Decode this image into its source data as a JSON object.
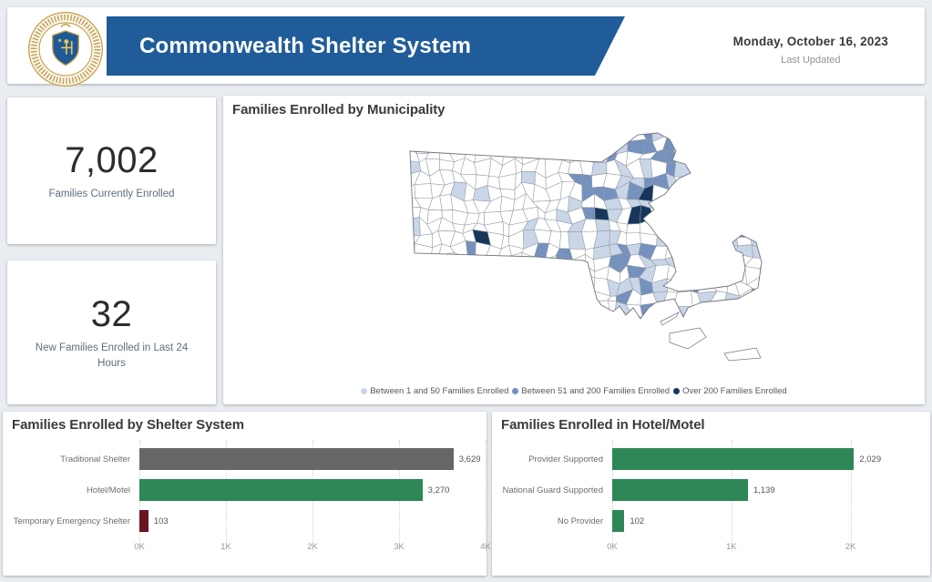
{
  "header": {
    "title": "Commonwealth Shelter System",
    "date": "Monday, October 16, 2023",
    "last_updated_label": "Last Updated",
    "banner_color": "#1f5c99",
    "seal_icon": "massachusetts-state-seal"
  },
  "kpis": [
    {
      "value": "7,002",
      "label": "Families Currently Enrolled"
    },
    {
      "value": "32",
      "label": "New Families Enrolled in Last 24 Hours"
    }
  ],
  "map": {
    "title": "Families Enrolled by Municipality",
    "type": "choropleth",
    "region": "Massachusetts municipalities",
    "no_enrollment_color": "#ffffff",
    "border_color": "#949aa2",
    "outline_color": "#6f7680",
    "legend": [
      {
        "label": "Between 1 and 50 Families Enrolled",
        "color": "#c9d6e8"
      },
      {
        "label": "Between 51 and 200 Families Enrolled",
        "color": "#7591bd"
      },
      {
        "label": "Over 200 Families Enrolled",
        "color": "#16365c"
      }
    ],
    "dark_cells": [
      [
        19,
        7
      ],
      [
        20,
        7
      ],
      [
        20,
        5
      ],
      [
        16,
        7
      ],
      [
        6,
        9
      ]
    ]
  },
  "chart_data": [
    {
      "type": "bar",
      "orientation": "horizontal",
      "title": "Families Enrolled by Shelter System",
      "categories": [
        "Traditional Shelter",
        "Hotel/Motel",
        "Temporary Emergency Shelter"
      ],
      "values": [
        3629,
        3270,
        103
      ],
      "value_labels": [
        "3,629",
        "3,270",
        "103"
      ],
      "bar_colors": [
        "#666666",
        "#2e8757",
        "#6d1321"
      ],
      "xlim": [
        0,
        4000
      ],
      "ticks": [
        {
          "v": 0,
          "label": "0K"
        },
        {
          "v": 1000,
          "label": "1K"
        },
        {
          "v": 2000,
          "label": "2K"
        },
        {
          "v": 3000,
          "label": "3K"
        },
        {
          "v": 4000,
          "label": "4K"
        }
      ],
      "grid": true,
      "legend_position": "none"
    },
    {
      "type": "bar",
      "orientation": "horizontal",
      "title": "Families Enrolled in Hotel/Motel",
      "categories": [
        "Provider Supported",
        "National Guard Supported",
        "No Provider"
      ],
      "values": [
        2029,
        1139,
        102
      ],
      "value_labels": [
        "2,029",
        "1,139",
        "102"
      ],
      "bar_colors": [
        "#2e8757",
        "#2e8757",
        "#2e8757"
      ],
      "xlim": [
        0,
        2600
      ],
      "ticks": [
        {
          "v": 0,
          "label": "0K"
        },
        {
          "v": 1000,
          "label": "1K"
        },
        {
          "v": 2000,
          "label": "2K"
        }
      ],
      "grid": true,
      "legend_position": "none"
    }
  ]
}
